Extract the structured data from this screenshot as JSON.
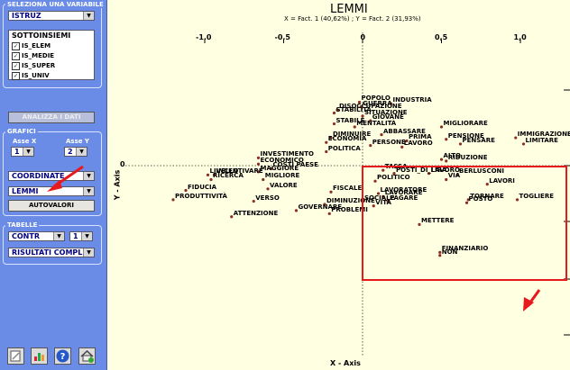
{
  "sidebar": {
    "select_variable_title": "SELEZIONA UNA VARIABILE",
    "variable_value": "ISTRUZ",
    "subsets_header": "SOTTOINSIEMI",
    "subsets": [
      {
        "label": "IS_ELEM",
        "checked": true
      },
      {
        "label": "IS_MEDIE",
        "checked": true
      },
      {
        "label": "IS_SUPER",
        "checked": true
      },
      {
        "label": "IS_UNIV",
        "checked": true
      }
    ],
    "analyze_button": "ANALIZZA I DATI",
    "grafici_title": "GRAFICI",
    "axis_x_label": "Asse X",
    "axis_x_value": "1",
    "axis_y_label": "Asse Y",
    "axis_y_value": "2",
    "coordinate_value": "COORDINATE",
    "lemmi_value": "LEMMI",
    "autovalori_button": "AUTOVALORI",
    "tabelle_title": "TABELLE",
    "contr_value": "CONTR",
    "contr_num": "1",
    "risultati_value": "RISULTATI COMPLI"
  },
  "toolbar_icons": [
    "save-icon",
    "chart-icon",
    "help-icon",
    "home-icon"
  ],
  "plot": {
    "title": "LEMMI",
    "subtitle": "X = Fact. 1 (40,62%) ; Y = Fact. 2 (31,93%)",
    "x_axis_label": "X - Axis",
    "y_axis_label": "Y - Axis",
    "x_ticks": [
      "-1,0",
      "-0,5",
      "0",
      "0,5",
      "1,0"
    ],
    "left_tick_zero": "0",
    "selection_color": "#e8191c",
    "point_color": "#8b2e23"
  },
  "chart_data": {
    "type": "scatter",
    "title": "LEMMI",
    "subtitle": "X = Fact. 1 (40,62%) ; Y = Fact. 2 (31,93%)",
    "xlabel": "X - Axis",
    "ylabel": "Y - Axis",
    "xlim": [
      -1.2,
      1.3
    ],
    "ylim": [
      -0.7,
      0.55
    ],
    "points": [
      {
        "label": "POPOLO",
        "x": -0.02,
        "y": 0.41
      },
      {
        "label": "INDUSTRIA",
        "x": 0.18,
        "y": 0.4
      },
      {
        "label": "GUERRA",
        "x": -0.01,
        "y": 0.38
      },
      {
        "label": "DISOCCUPAZIONE",
        "x": -0.16,
        "y": 0.36
      },
      {
        "label": "STABILITÀ",
        "x": -0.18,
        "y": 0.34
      },
      {
        "label": "SITUAZIONE",
        "x": 0.0,
        "y": 0.32
      },
      {
        "label": "GIOVANE",
        "x": 0.05,
        "y": 0.29
      },
      {
        "label": "STABILE",
        "x": -0.18,
        "y": 0.27
      },
      {
        "label": "MENTALITÀ",
        "x": -0.05,
        "y": 0.25
      },
      {
        "label": "MIGLIORARE",
        "x": 0.5,
        "y": 0.25
      },
      {
        "label": "ABBASSARE",
        "x": 0.12,
        "y": 0.2
      },
      {
        "label": "IMMIGRAZIONE",
        "x": 0.97,
        "y": 0.18
      },
      {
        "label": "DIMINUIRE",
        "x": -0.2,
        "y": 0.18
      },
      {
        "label": "PENSIONE",
        "x": 0.53,
        "y": 0.17
      },
      {
        "label": "PRIMA",
        "x": 0.28,
        "y": 0.16
      },
      {
        "label": "ECONOMIA",
        "x": -0.23,
        "y": 0.15
      },
      {
        "label": "LIMITARE",
        "x": 1.02,
        "y": 0.14
      },
      {
        "label": "PENSARE",
        "x": 0.62,
        "y": 0.14
      },
      {
        "label": "PERSONE",
        "x": 0.05,
        "y": 0.13
      },
      {
        "label": "LAVORO",
        "x": 0.25,
        "y": 0.12
      },
      {
        "label": "POLITICA",
        "x": -0.23,
        "y": 0.09
      },
      {
        "label": "INVESTIMENTO",
        "x": -0.66,
        "y": 0.05
      },
      {
        "label": "ALTO",
        "x": 0.5,
        "y": 0.04
      },
      {
        "label": "RIDUZIONE",
        "x": 0.53,
        "y": 0.03
      },
      {
        "label": "ECONOMICO",
        "x": -0.66,
        "y": 0.01
      },
      {
        "label": "TASSA",
        "x": 0.13,
        "y": -0.03
      },
      {
        "label": "COSTI PAESE",
        "x": -0.58,
        "y": -0.02
      },
      {
        "label": "MAGGIORE",
        "x": -0.66,
        "y": -0.04
      },
      {
        "label": "POSTI_DI_LAVORO",
        "x": 0.2,
        "y": -0.05
      },
      {
        "label": "LIRA",
        "x": 0.42,
        "y": -0.05
      },
      {
        "label": "INCENTIVARE",
        "x": -0.94,
        "y": -0.06
      },
      {
        "label": "LIVELLO",
        "x": -0.98,
        "y": -0.06
      },
      {
        "label": "BERLUSCONI",
        "x": 0.6,
        "y": -0.06
      },
      {
        "label": "RICERCA",
        "x": -0.96,
        "y": -0.09
      },
      {
        "label": "MIGLIORE",
        "x": -0.63,
        "y": -0.09
      },
      {
        "label": "VIA",
        "x": 0.53,
        "y": -0.09
      },
      {
        "label": "POLITICO",
        "x": 0.08,
        "y": -0.1
      },
      {
        "label": "LAVORI",
        "x": 0.79,
        "y": -0.12
      },
      {
        "label": "VALORE",
        "x": -0.6,
        "y": -0.15
      },
      {
        "label": "FIDUCIA",
        "x": -1.12,
        "y": -0.16
      },
      {
        "label": "FISCALE",
        "x": -0.2,
        "y": -0.17
      },
      {
        "label": "LAVORATORE",
        "x": 0.1,
        "y": -0.18
      },
      {
        "label": "LAVORARE",
        "x": 0.13,
        "y": -0.2
      },
      {
        "label": "PRODUTTIVITÀ",
        "x": -1.2,
        "y": -0.22
      },
      {
        "label": "TORNARE",
        "x": 0.67,
        "y": -0.22
      },
      {
        "label": "TOGLIERE",
        "x": 0.98,
        "y": -0.22
      },
      {
        "label": "VERSO",
        "x": -0.69,
        "y": -0.23
      },
      {
        "label": "SOCIALE",
        "x": 0.0,
        "y": -0.23
      },
      {
        "label": "PAGARE",
        "x": 0.16,
        "y": -0.23
      },
      {
        "label": "POSTO",
        "x": 0.66,
        "y": -0.24
      },
      {
        "label": "DIMINUZIONE",
        "x": -0.24,
        "y": -0.25
      },
      {
        "label": "VITA",
        "x": 0.07,
        "y": -0.26
      },
      {
        "label": "GOVERNARE",
        "x": -0.42,
        "y": -0.29
      },
      {
        "label": "PROBLEMI",
        "x": -0.21,
        "y": -0.31
      },
      {
        "label": "ATTENZIONE",
        "x": -0.83,
        "y": -0.33
      },
      {
        "label": "METTERE",
        "x": 0.36,
        "y": -0.38
      },
      {
        "label": "FINANZIARIO",
        "x": 0.49,
        "y": -0.56
      },
      {
        "label": "NON",
        "x": 0.49,
        "y": -0.58
      }
    ]
  }
}
